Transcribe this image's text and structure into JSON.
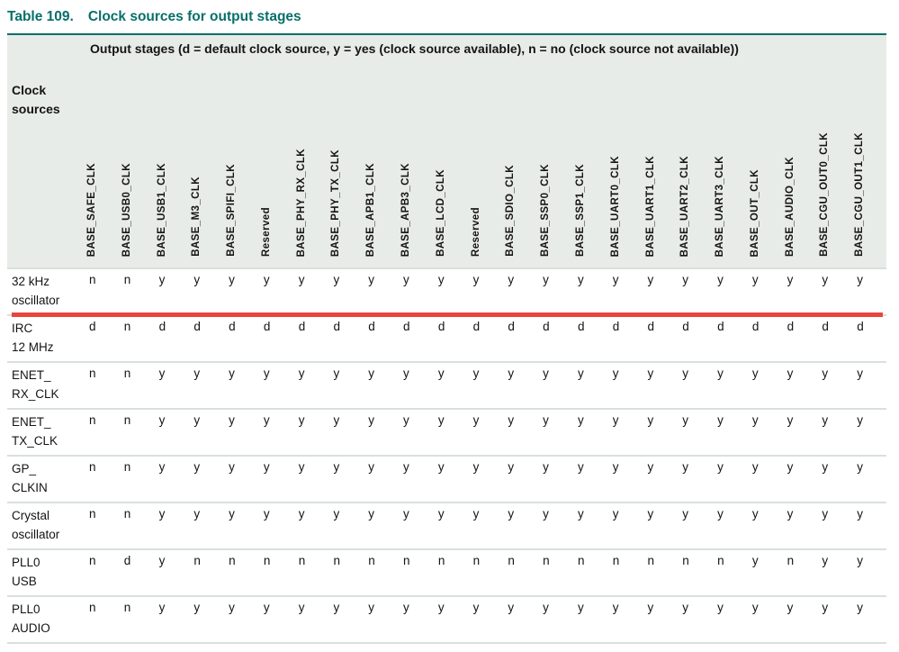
{
  "title": {
    "number": "Table 109.",
    "caption": "Clock sources for output stages"
  },
  "table": {
    "corner_label": "Clock sources",
    "legend": "Output stages (d = default clock source, y = yes (clock source available), n = no (clock source not available))",
    "columns": [
      "BASE_SAFE_CLK",
      "BASE_USB0_CLK",
      "BASE_USB1_CLK",
      "BASE_M3_CLK",
      "BASE_SPIFI_CLK",
      "Reserved",
      "BASE_PHY_RX_CLK",
      "BASE_PHY_TX_CLK",
      "BASE_APB1_CLK",
      "BASE_APB3_CLK",
      "BASE_LCD_CLK",
      "Reserved",
      "BASE_SDIO_CLK",
      "BASE_SSP0_CLK",
      "BASE_SSP1_CLK",
      "BASE_UART0_CLK",
      "BASE_UART1_CLK",
      "BASE_UART2_CLK",
      "BASE_UART3_CLK",
      "BASE_OUT_CLK",
      "BASE_AUDIO_CLK",
      "BASE_CGU_OUT0_CLK",
      "BASE_CGU_OUT1_CLK"
    ],
    "rows": [
      {
        "label": [
          "32 kHz",
          "oscillator"
        ],
        "values": [
          "n",
          "n",
          "y",
          "y",
          "y",
          "y",
          "y",
          "y",
          "y",
          "y",
          "y",
          "y",
          "y",
          "y",
          "y",
          "y",
          "y",
          "y",
          "y",
          "y",
          "y",
          "y",
          "y"
        ]
      },
      {
        "label": [
          "IRC",
          "12 MHz"
        ],
        "values": [
          "d",
          "n",
          "d",
          "d",
          "d",
          "d",
          "d",
          "d",
          "d",
          "d",
          "d",
          "d",
          "d",
          "d",
          "d",
          "d",
          "d",
          "d",
          "d",
          "d",
          "d",
          "d",
          "d"
        ]
      },
      {
        "label": [
          "ENET_",
          "RX_CLK"
        ],
        "values": [
          "n",
          "n",
          "y",
          "y",
          "y",
          "y",
          "y",
          "y",
          "y",
          "y",
          "y",
          "y",
          "y",
          "y",
          "y",
          "y",
          "y",
          "y",
          "y",
          "y",
          "y",
          "y",
          "y"
        ]
      },
      {
        "label": [
          "ENET_",
          "TX_CLK"
        ],
        "values": [
          "n",
          "n",
          "y",
          "y",
          "y",
          "y",
          "y",
          "y",
          "y",
          "y",
          "y",
          "y",
          "y",
          "y",
          "y",
          "y",
          "y",
          "y",
          "y",
          "y",
          "y",
          "y",
          "y"
        ]
      },
      {
        "label": [
          "GP_",
          "CLKIN"
        ],
        "values": [
          "n",
          "n",
          "y",
          "y",
          "y",
          "y",
          "y",
          "y",
          "y",
          "y",
          "y",
          "y",
          "y",
          "y",
          "y",
          "y",
          "y",
          "y",
          "y",
          "y",
          "y",
          "y",
          "y"
        ]
      },
      {
        "label": [
          "Crystal",
          "oscillator"
        ],
        "values": [
          "n",
          "n",
          "y",
          "y",
          "y",
          "y",
          "y",
          "y",
          "y",
          "y",
          "y",
          "y",
          "y",
          "y",
          "y",
          "y",
          "y",
          "y",
          "y",
          "y",
          "y",
          "y",
          "y"
        ]
      },
      {
        "label": [
          "PLL0",
          "USB"
        ],
        "values": [
          "n",
          "d",
          "y",
          "n",
          "n",
          "n",
          "n",
          "n",
          "n",
          "n",
          "n",
          "n",
          "n",
          "n",
          "n",
          "n",
          "n",
          "n",
          "n",
          "y",
          "n",
          "y",
          "y"
        ]
      },
      {
        "label": [
          "PLL0",
          "AUDIO"
        ],
        "values": [
          "n",
          "n",
          "y",
          "y",
          "y",
          "y",
          "y",
          "y",
          "y",
          "y",
          "y",
          "y",
          "y",
          "y",
          "y",
          "y",
          "y",
          "y",
          "y",
          "y",
          "y",
          "y",
          "y"
        ]
      }
    ]
  },
  "annotation": {
    "red_line": "horizontal red marker line under first data row"
  },
  "colors": {
    "accent_teal": "#066f6a",
    "header_background": "#e8ece9",
    "row_border": "#d9e0dc",
    "red_line": "#e8463c",
    "text": "#141414"
  }
}
